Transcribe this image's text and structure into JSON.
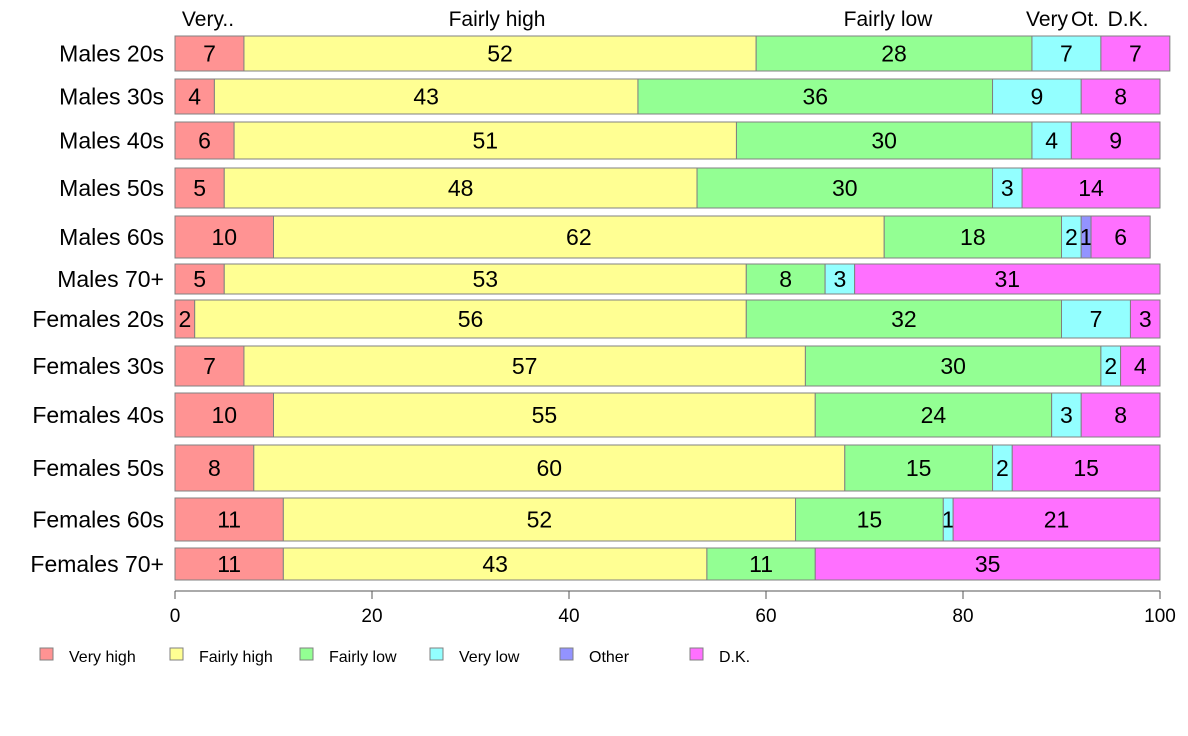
{
  "chart_data": {
    "type": "bar",
    "orientation": "horizontal",
    "stacked": true,
    "xlim": [
      0,
      100
    ],
    "x_ticks": [
      "0",
      "20",
      "40",
      "60",
      "80",
      "100"
    ],
    "categories": [
      "Males 20s",
      "Males 30s",
      "Males 40s",
      "Males 50s",
      "Males 60s",
      "Males 70+",
      "Females 20s",
      "Females 30s",
      "Females 40s",
      "Females 50s",
      "Females 60s",
      "Females 70+"
    ],
    "series": [
      {
        "name": "Very high",
        "values": [
          7,
          4,
          6,
          5,
          10,
          5,
          2,
          7,
          10,
          8,
          11,
          11
        ]
      },
      {
        "name": "Fairly high",
        "values": [
          52,
          43,
          51,
          48,
          62,
          53,
          56,
          57,
          55,
          60,
          52,
          43
        ]
      },
      {
        "name": "Fairly low",
        "values": [
          28,
          36,
          30,
          30,
          18,
          8,
          32,
          30,
          24,
          15,
          15,
          11
        ]
      },
      {
        "name": "Very low",
        "values": [
          7,
          9,
          4,
          3,
          2,
          3,
          7,
          2,
          3,
          2,
          1,
          0
        ]
      },
      {
        "name": "Other",
        "values": [
          0,
          0,
          0,
          0,
          1,
          0,
          0,
          0,
          0,
          0,
          0,
          0
        ]
      },
      {
        "name": "D.K.",
        "values": [
          7,
          8,
          9,
          14,
          6,
          31,
          3,
          4,
          8,
          15,
          21,
          35
        ]
      }
    ],
    "top_labels": [
      "Very..",
      "Fairly high",
      "Fairly low",
      "Very",
      "Ot.",
      "D.K."
    ],
    "legend_position": "bottom",
    "grid": false
  },
  "colors": {
    "Very high": "#FF9393",
    "Fairly high": "#FFFF93",
    "Fairly low": "#93FF93",
    "Very low": "#93FFFF",
    "Other": "#9393FF",
    "D.K.": "#FF70FF"
  }
}
